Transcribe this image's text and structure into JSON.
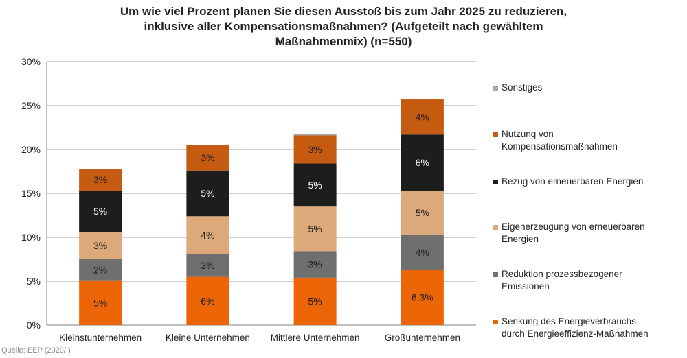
{
  "title_lines": [
    "Um wie viel Prozent planen Sie diesen Ausstoß bis zum Jahr 2025 zu reduzieren,",
    "inklusive aller Kompensationsmaßnahmen? (Aufgeteilt nach gewähltem",
    "Maßnahmenmix) (n=550)"
  ],
  "source": "Quelle: EEP (2020/I)",
  "chart_data": {
    "type": "bar",
    "stacked": true,
    "categories": [
      "Kleinstunternehmen",
      "Kleine Unternehmen",
      "Mittlere Unternehmen",
      "Großunternehmen"
    ],
    "ylim": [
      0,
      30
    ],
    "yticks": [
      0,
      5,
      10,
      15,
      20,
      25,
      30
    ],
    "ytick_labels": [
      "0%",
      "5%",
      "10%",
      "15%",
      "20%",
      "25%",
      "30%"
    ],
    "grid": true,
    "legend_position": "right",
    "series": [
      {
        "name": "Senkung des Energieverbrauchs\ndurch Energieeffizienz-Maßnahmen",
        "color": "#EC6608",
        "label_color": "#1a1a1a",
        "values": [
          5.1,
          5.5,
          5.4,
          6.3
        ],
        "labels": [
          "5%",
          "6%",
          "5%",
          "6,3%"
        ]
      },
      {
        "name": "Reduktion prozessbezogener\nEmissionen",
        "color": "#6F6F6F",
        "label_color": "#1a1a1a",
        "values": [
          2.4,
          2.6,
          3.0,
          4.0
        ],
        "labels": [
          "2%",
          "3%",
          "3%",
          "4%"
        ]
      },
      {
        "name": "Eigenerzeugung von erneuerbaren\nEnergien",
        "color": "#DDA97B",
        "label_color": "#1a1a1a",
        "values": [
          3.1,
          4.3,
          5.1,
          5.0
        ],
        "labels": [
          "3%",
          "4%",
          "5%",
          "5%"
        ]
      },
      {
        "name": "Bezug von erneuerbaren Energien",
        "color": "#1D1D1B",
        "label_color": "#ffffff",
        "values": [
          4.7,
          5.2,
          4.9,
          6.4
        ],
        "labels": [
          "5%",
          "5%",
          "5%",
          "6%"
        ]
      },
      {
        "name": "Nutzung von\nKompensationsmaßnahmen",
        "color": "#C55A11",
        "label_color": "#1a1a1a",
        "values": [
          2.5,
          2.9,
          3.2,
          4.0
        ],
        "labels": [
          "3%",
          "3%",
          "3%",
          "4%"
        ]
      },
      {
        "name": "Sonstiges",
        "color": "#A6A6A6",
        "label_color": "#1a1a1a",
        "values": [
          0,
          0,
          0.2,
          0
        ],
        "labels": [
          "",
          "",
          "",
          ""
        ]
      }
    ]
  }
}
